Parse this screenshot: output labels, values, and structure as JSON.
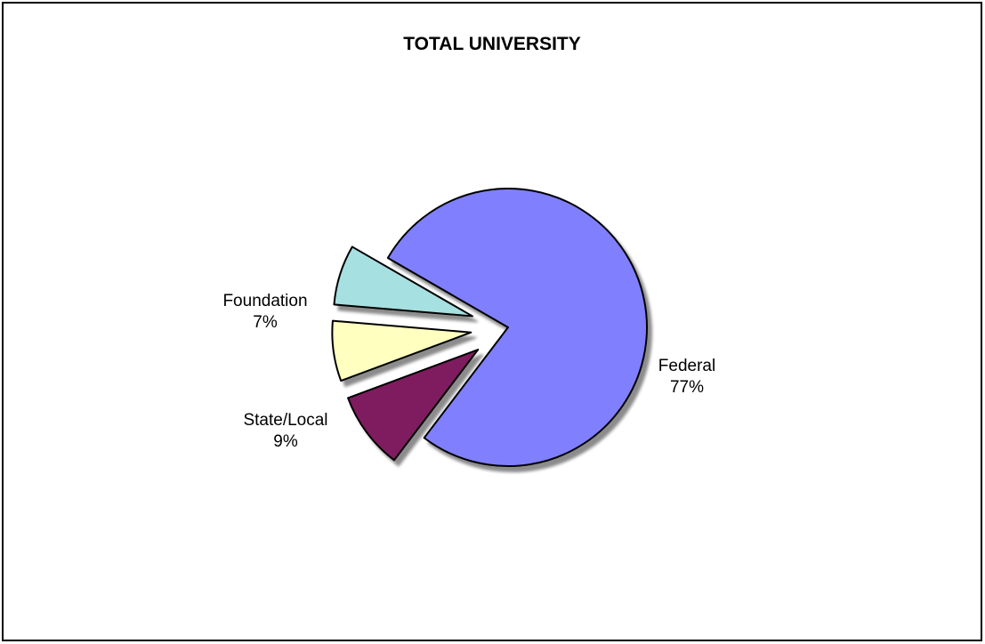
{
  "chart_data": {
    "type": "pie",
    "title": "TOTAL UNIVERSITY",
    "slices": [
      {
        "label": "Federal",
        "percent_label": "77%",
        "value": 77,
        "color": "#8080ff"
      },
      {
        "label": "State/Local",
        "percent_label": "9%",
        "value": 9,
        "color": "#7f1f5f"
      },
      {
        "label": "",
        "percent_label": "",
        "value": 7,
        "color": "#ffffc0"
      },
      {
        "label": "Foundation",
        "percent_label": "7%",
        "value": 7,
        "color": "#a6e0e0"
      }
    ],
    "exploded": [
      "State/Local",
      "",
      "Foundation"
    ],
    "legend": "none",
    "grid": false
  }
}
